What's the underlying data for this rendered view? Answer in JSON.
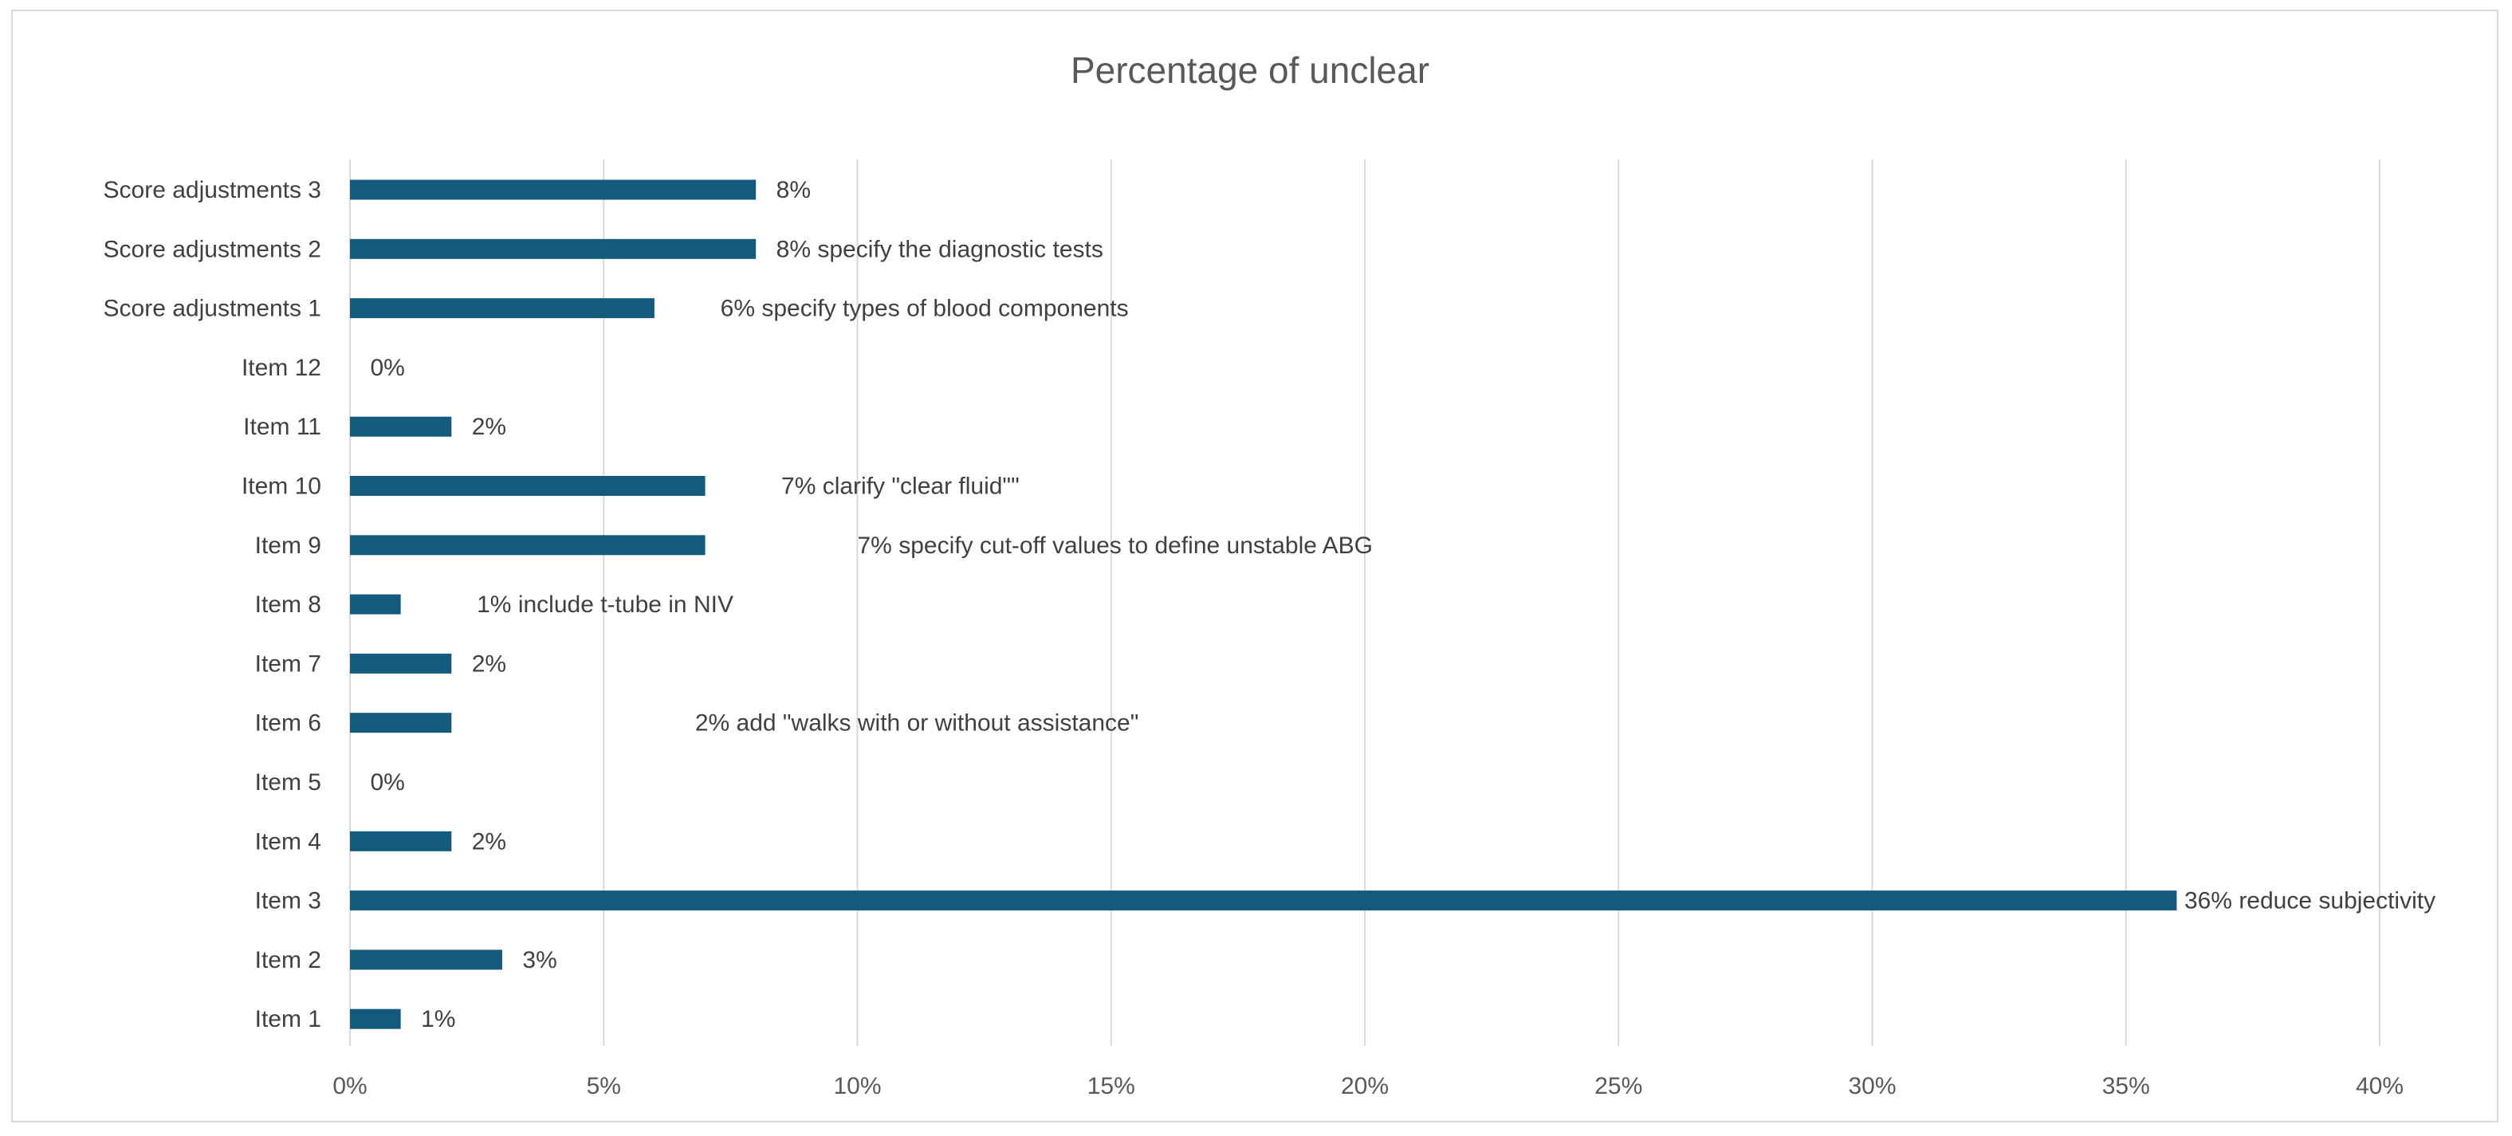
{
  "chart_data": {
    "type": "bar",
    "orientation": "horizontal",
    "title": "Percentage of unclear",
    "xlabel": "",
    "ylabel": "",
    "xlim": [
      0,
      40
    ],
    "x_ticks": [
      "0%",
      "5%",
      "10%",
      "15%",
      "20%",
      "25%",
      "30%",
      "35%",
      "40%"
    ],
    "grid": true,
    "legend": "none",
    "bar_color": "#145a7d",
    "grid_color": "#d9d9d9",
    "categories": [
      "Score adjustments 3",
      "Score adjustments 2",
      "Score adjustments 1",
      "Item 12",
      "Item 11",
      "Item 10",
      "Item 9",
      "Item 8",
      "Item 7",
      "Item 6",
      "Item 5",
      "Item 4",
      "Item 3",
      "Item 2",
      "Item 1"
    ],
    "values": [
      8,
      8,
      6,
      0,
      2,
      7,
      7,
      1,
      2,
      2,
      0,
      2,
      36,
      3,
      1
    ],
    "data_labels": [
      "8%",
      "8% specify the diagnostic tests",
      "6% specify types of blood components",
      "0%",
      "2%",
      "7% clarify \"clear fluid\"\"",
      "7% specify cut-off values to define unstable ABG",
      "1% include t-tube in NIV",
      "2%",
      "2% add \"walks with or without assistance\"",
      "0%",
      "2%",
      "36% reduce subjectivity",
      "3%",
      "1%"
    ]
  }
}
